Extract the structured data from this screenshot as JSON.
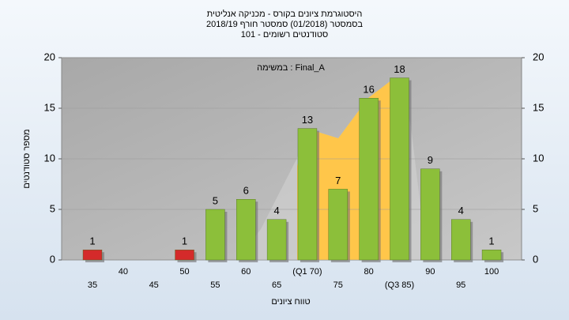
{
  "chart_data": {
    "type": "bar",
    "title_lines": [
      "היסטוגרמת ציונים בקורס - מכניקה אנליטית",
      "בסמסטר  (01/2018)  סמסטר חורף 2018/19",
      "סטודנטים רשומים - 101"
    ],
    "annotation": "במשימה : Final_A",
    "x_label": "טווח ציונים",
    "y_label": "מספר סטודנטים",
    "categories": [
      "35",
      "40",
      "45",
      "50",
      "55",
      "60",
      "65",
      "(Q1 70)",
      "75",
      "80",
      "(Q3 85)",
      "90",
      "95",
      "100"
    ],
    "values": [
      1,
      0,
      0,
      1,
      5,
      6,
      4,
      13,
      7,
      16,
      18,
      9,
      4,
      1
    ],
    "colors": [
      "#d42a2a",
      "#d42a2a",
      "#d42a2a",
      "#d42a2a",
      "#8cbf3a",
      "#8cbf3a",
      "#8cbf3a",
      "#8cbf3a",
      "#8cbf3a",
      "#8cbf3a",
      "#8cbf3a",
      "#8cbf3a",
      "#8cbf3a",
      "#8cbf3a"
    ],
    "ylim": [
      0,
      20
    ],
    "yticks": [
      0,
      5,
      10,
      15,
      20
    ],
    "y2lim": [
      0,
      20
    ],
    "y2ticks": [
      0,
      5,
      10,
      15,
      20
    ]
  }
}
